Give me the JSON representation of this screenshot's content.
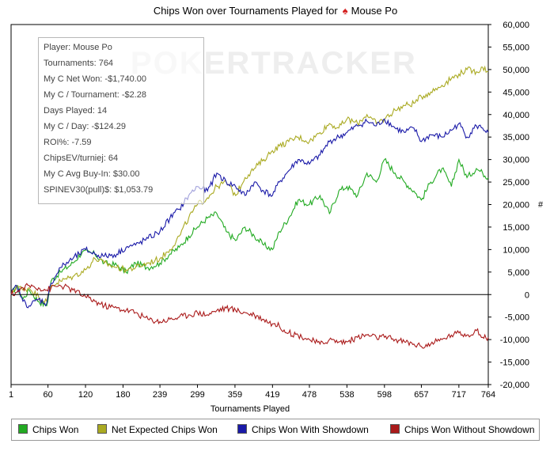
{
  "title": "Chips Won over Tournaments Played for",
  "player_name": "Mouse Po",
  "watermark": "POKERTRACKER",
  "info": [
    "Player: Mouse Po",
    "Tournaments: 764",
    "My C Net Won: -$1,740.00",
    "My C / Tournament: -$2.28",
    "Days Played: 14",
    "My C / Day: -$124.29",
    "ROI%: -7.59",
    "ChipsEV/turniej: 64",
    "My C Avg Buy-In: $30.00",
    "SPINEV30(pull)$: $1,053.79"
  ],
  "chart_data": {
    "type": "line",
    "title": "Chips Won over Tournaments Played for Mouse Po",
    "xlabel": "Tournaments Played",
    "ylabel": "#",
    "xlim": [
      1,
      764
    ],
    "ylim": [
      -20000,
      60000
    ],
    "x_ticks": [
      1,
      60,
      120,
      180,
      239,
      299,
      359,
      419,
      478,
      538,
      598,
      657,
      717,
      764
    ],
    "y_ticks": [
      60000,
      55000,
      50000,
      45000,
      40000,
      35000,
      30000,
      25000,
      20000,
      15000,
      10000,
      5000,
      0,
      -5000,
      -10000,
      -15000,
      -20000
    ],
    "y_tick_labels": [
      "60,000",
      "55,000",
      "50,000",
      "45,000",
      "40,000",
      "35,000",
      "30,000",
      "25,000",
      "20,000",
      "15,000",
      "10,000",
      "5,000",
      "0",
      "-5,000",
      "-10,000",
      "-15,000",
      "-20,000"
    ],
    "grid": false,
    "legend_position": "bottom",
    "series": [
      {
        "name": "Chips Won",
        "color": "#22aa22",
        "x": [
          1,
          10,
          20,
          30,
          45,
          58,
          65,
          80,
          100,
          115,
          135,
          150,
          170,
          185,
          200,
          220,
          239,
          255,
          270,
          285,
          299,
          315,
          330,
          345,
          360,
          375,
          390,
          405,
          419,
          430,
          445,
          460,
          478,
          495,
          510,
          525,
          538,
          555,
          570,
          585,
          598,
          615,
          630,
          645,
          657,
          672,
          690,
          705,
          717,
          730,
          745,
          755,
          764
        ],
        "y": [
          0,
          2000,
          -1000,
          1000,
          -1500,
          -2500,
          3000,
          5000,
          7000,
          9500,
          9000,
          7000,
          6500,
          5000,
          7000,
          6000,
          7000,
          9000,
          10500,
          13000,
          15000,
          17000,
          18000,
          14000,
          12000,
          15000,
          13000,
          11000,
          10000,
          14000,
          17000,
          21000,
          20000,
          22000,
          18000,
          23000,
          24000,
          22000,
          27000,
          25000,
          30000,
          27000,
          25000,
          23000,
          21000,
          25000,
          28000,
          24000,
          30000,
          26000,
          28000,
          27000,
          26000
        ]
      },
      {
        "name": "Net Expected Chips Won",
        "color": "#aaaa22",
        "x": [
          1,
          10,
          20,
          30,
          45,
          58,
          65,
          80,
          100,
          120,
          135,
          150,
          170,
          185,
          200,
          220,
          239,
          255,
          270,
          285,
          299,
          315,
          330,
          345,
          360,
          375,
          390,
          405,
          419,
          430,
          445,
          460,
          478,
          495,
          510,
          525,
          538,
          555,
          570,
          585,
          598,
          615,
          630,
          645,
          657,
          672,
          690,
          705,
          717,
          730,
          745,
          755,
          764
        ],
        "y": [
          0,
          2000,
          1000,
          1500,
          -500,
          -1500,
          2000,
          3000,
          4000,
          5500,
          8000,
          7000,
          6000,
          5500,
          6000,
          7000,
          8000,
          10000,
          13000,
          17000,
          20000,
          21500,
          24000,
          25000,
          22000,
          26000,
          28000,
          30000,
          32000,
          33000,
          34000,
          35000,
          34000,
          36000,
          38000,
          37000,
          39000,
          38000,
          40000,
          38000,
          39000,
          41000,
          42000,
          42500,
          44000,
          45000,
          46500,
          48000,
          49000,
          50000,
          49500,
          50500,
          49500
        ]
      },
      {
        "name": "Chips Won With Showdown",
        "color": "#1a1aa8",
        "x": [
          1,
          10,
          20,
          30,
          45,
          58,
          65,
          80,
          100,
          120,
          135,
          150,
          170,
          185,
          200,
          220,
          239,
          255,
          270,
          285,
          299,
          315,
          330,
          345,
          360,
          375,
          390,
          405,
          419,
          430,
          445,
          460,
          478,
          495,
          510,
          525,
          538,
          555,
          570,
          585,
          598,
          615,
          630,
          645,
          657,
          672,
          690,
          705,
          717,
          730,
          745,
          755,
          764
        ],
        "y": [
          0,
          2000,
          -1500,
          -2500,
          -1000,
          -2000,
          2500,
          6000,
          8000,
          10000,
          9000,
          8500,
          9000,
          10500,
          11000,
          12500,
          14000,
          17000,
          19000,
          22000,
          24000,
          23000,
          27000,
          25000,
          24000,
          22000,
          25000,
          23000,
          22000,
          25000,
          27500,
          30000,
          29000,
          31000,
          34000,
          35000,
          36000,
          37500,
          38500,
          37500,
          39000,
          37000,
          36000,
          37000,
          34000,
          35500,
          35000,
          36500,
          38000,
          35000,
          37500,
          37000,
          36000
        ]
      },
      {
        "name": "Chips Won Without Showdown",
        "color": "#aa1a1a",
        "x": [
          1,
          10,
          20,
          30,
          45,
          58,
          65,
          80,
          100,
          120,
          135,
          150,
          170,
          185,
          200,
          220,
          239,
          255,
          270,
          285,
          299,
          315,
          330,
          345,
          360,
          375,
          390,
          405,
          419,
          430,
          445,
          460,
          478,
          495,
          510,
          525,
          538,
          555,
          570,
          585,
          598,
          615,
          630,
          645,
          657,
          672,
          690,
          705,
          717,
          730,
          745,
          755,
          764
        ],
        "y": [
          0,
          500,
          1500,
          2000,
          1500,
          1000,
          1500,
          2000,
          1000,
          -500,
          -1500,
          -2500,
          -3000,
          -3500,
          -4000,
          -5500,
          -6000,
          -5500,
          -5000,
          -4500,
          -4000,
          -4500,
          -3500,
          -3000,
          -3500,
          -4000,
          -4500,
          -5500,
          -6500,
          -7000,
          -8500,
          -9000,
          -10000,
          -11000,
          -10000,
          -10500,
          -10500,
          -9500,
          -9000,
          -9500,
          -9500,
          -10000,
          -10500,
          -11000,
          -11500,
          -11000,
          -10000,
          -9000,
          -8500,
          -9000,
          -8000,
          -9500,
          -9500
        ]
      }
    ]
  },
  "legend": [
    {
      "label": "Chips Won",
      "color": "#22aa22"
    },
    {
      "label": "Net Expected Chips Won",
      "color": "#aaaa22"
    },
    {
      "label": "Chips Won With Showdown",
      "color": "#1a1aa8"
    },
    {
      "label": "Chips Won Without Showdown",
      "color": "#aa1a1a"
    }
  ]
}
